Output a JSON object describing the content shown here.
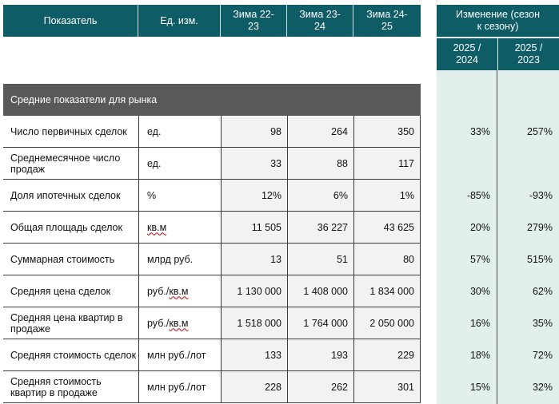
{
  "header": {
    "indicator": "Показатель",
    "unit": "Ед. изм.",
    "seasons": [
      "Зима 22-23",
      "Зима 23-24",
      "Зима 24-25"
    ],
    "change_title": "Изменение (сезон к сезону)",
    "change_cols": [
      "2025 / 2024",
      "2025 / 2023"
    ]
  },
  "section_title": "Средние показатели для рынка",
  "rows": [
    {
      "name": "Число первичных сделок",
      "unit": "ед.",
      "values": [
        "98",
        "264",
        "350"
      ],
      "changes": [
        "33%",
        "257%"
      ]
    },
    {
      "name": "Среднемесячное число продаж",
      "unit": "ед.",
      "values": [
        "33",
        "88",
        "117"
      ],
      "changes": [
        "",
        ""
      ]
    },
    {
      "name": "Доля ипотечных сделок",
      "unit": "%",
      "values": [
        "12%",
        "6%",
        "1%"
      ],
      "changes": [
        "-85%",
        "-93%"
      ]
    },
    {
      "name": "Общая площадь сделок",
      "unit": "кв.м",
      "values": [
        "11 505",
        "36 227",
        "43 625"
      ],
      "changes": [
        "20%",
        "279%"
      ]
    },
    {
      "name": "Суммарная стоимость",
      "unit": "млрд руб.",
      "values": [
        "13",
        "51",
        "80"
      ],
      "changes": [
        "57%",
        "515%"
      ]
    },
    {
      "name": "Средняя цена сделок",
      "unit": "руб./кв.м",
      "values": [
        "1 130 000",
        "1 408 000",
        "1 834 000"
      ],
      "changes": [
        "30%",
        "62%"
      ]
    },
    {
      "name": "Средняя цена квартир в продаже",
      "unit": "руб./кв.м",
      "values": [
        "1 518 000",
        "1 764 000",
        "2 050 000"
      ],
      "changes": [
        "16%",
        "35%"
      ]
    },
    {
      "name": "Средняя стоимость сделок",
      "unit": "млн руб./лот",
      "values": [
        "133",
        "193",
        "229"
      ],
      "changes": [
        "18%",
        "72%"
      ]
    },
    {
      "name": "Средняя стоимость квартир в продаже",
      "unit": "млн руб./лот",
      "values": [
        "228",
        "262",
        "301"
      ],
      "changes": [
        "15%",
        "32%"
      ]
    }
  ],
  "colors": {
    "header": "#0e5d66",
    "section": "#595959",
    "change_band": "#e2efed",
    "value_cell": "#f2f2f2"
  }
}
